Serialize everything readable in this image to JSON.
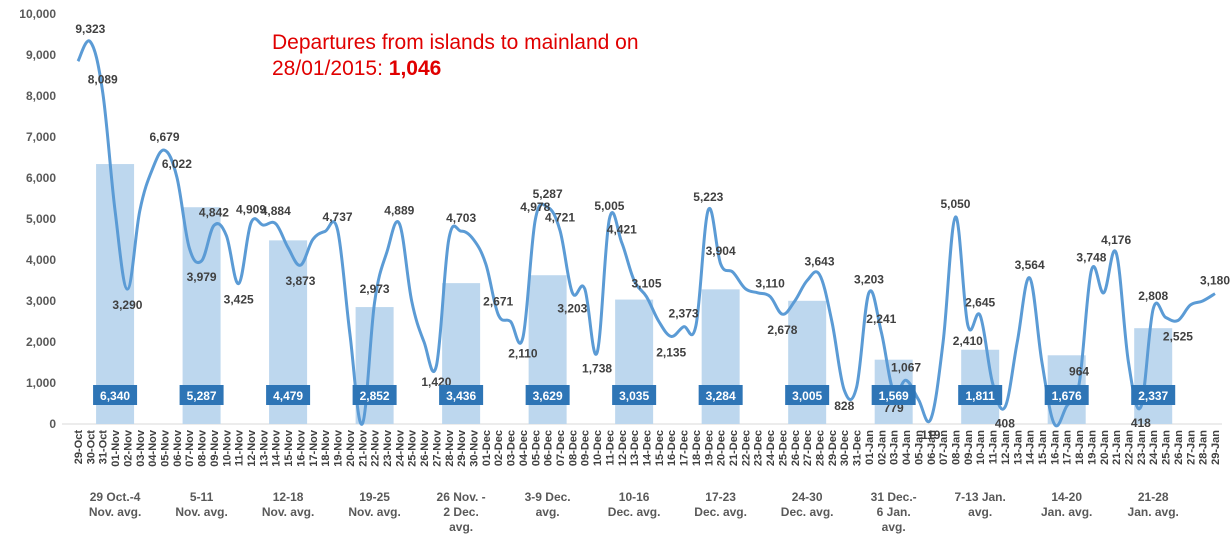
{
  "chart_data": {
    "type": "bar_line",
    "annotation": "Departures from islands to mainland on\n28/01/2015: ",
    "annotation_highlight": "1,046",
    "ylim": [
      0,
      10000
    ],
    "yticks": [
      0,
      {
        "value": 1000,
        "label": "1,000"
      },
      {
        "value": 2000,
        "label": "2,000"
      },
      {
        "value": 3000,
        "label": "3,000"
      },
      {
        "value": 4000,
        "label": "4,000"
      },
      {
        "value": 5000,
        "label": "5,000"
      },
      {
        "value": 6000,
        "label": "6,000"
      },
      {
        "value": 7000,
        "label": "7,000"
      },
      {
        "value": 8000,
        "label": "8,000"
      },
      {
        "value": 9000,
        "label": "9,000"
      },
      {
        "value": 10000,
        "label": "10,000"
      }
    ],
    "categories": [
      "29-Oct",
      "30-Oct",
      "31-Oct",
      "01-Nov",
      "02-Nov",
      "03-Nov",
      "04-Nov",
      "05-Nov",
      "06-Nov",
      "07-Nov",
      "08-Nov",
      "09-Nov",
      "10-Nov",
      "11-Nov",
      "12-Nov",
      "13-Nov",
      "14-Nov",
      "15-Nov",
      "16-Nov",
      "17-Nov",
      "18-Nov",
      "19-Nov",
      "20-Nov",
      "21-Nov",
      "22-Nov",
      "23-Nov",
      "24-Nov",
      "25-Nov",
      "26-Nov",
      "27-Nov",
      "28-Nov",
      "29-Nov",
      "30-Nov",
      "01-Dec",
      "02-Dec",
      "03-Dec",
      "04-Dec",
      "05-Dec",
      "06-Dec",
      "07-Dec",
      "08-Dec",
      "09-Dec",
      "10-Dec",
      "11-Dec",
      "12-Dec",
      "13-Dec",
      "14-Dec",
      "15-Dec",
      "16-Dec",
      "17-Dec",
      "18-Dec",
      "19-Dec",
      "20-Dec",
      "21-Dec",
      "22-Dec",
      "23-Dec",
      "24-Dec",
      "25-Dec",
      "26-Dec",
      "27-Dec",
      "28-Dec",
      "29-Dec",
      "30-Dec",
      "31-Dec",
      "01-Jan",
      "02-Jan",
      "03-Jan",
      "04-Jan",
      "05-Jan",
      "06-Jan",
      "07-Jan",
      "08-Jan",
      "09-Jan",
      "10-Jan",
      "11-Jan",
      "12-Jan",
      "13-Jan",
      "14-Jan",
      "15-Jan",
      "16-Jan",
      "17-Jan",
      "18-Jan",
      "19-Jan",
      "20-Jan",
      "21-Jan",
      "22-Jan",
      "23-Jan",
      "24-Jan",
      "25-Jan",
      "26-Jan",
      "27-Jan",
      "28-Jan",
      "29-Jan"
    ],
    "line": {
      "color": "#5b9bd5",
      "values": [
        8850,
        9323,
        8089,
        5200,
        3290,
        5200,
        6200,
        6679,
        6022,
        4300,
        3979,
        4842,
        4600,
        3425,
        4909,
        4850,
        4884,
        4300,
        3873,
        4500,
        4700,
        4737,
        2200,
        0,
        2973,
        4200,
        4889,
        3000,
        2000,
        1420,
        4500,
        4703,
        4500,
        3900,
        2671,
        2500,
        2110,
        4978,
        5287,
        4721,
        3203,
        3300,
        1738,
        5005,
        4421,
        3500,
        3105,
        2500,
        2135,
        2373,
        2400,
        5223,
        3904,
        3700,
        3300,
        3200,
        3110,
        2678,
        3000,
        3500,
        3643,
        2500,
        828,
        900,
        3203,
        2241,
        779,
        1067,
        600,
        119,
        2000,
        5050,
        2410,
        2645,
        1000,
        408,
        2000,
        3564,
        1500,
        0,
        435,
        964,
        3748,
        3200,
        4176,
        1500,
        418,
        2808,
        2600,
        2525,
        2900,
        3000,
        3180
      ],
      "value_labels": [
        null,
        "9,323",
        "8,089",
        null,
        "3,290",
        null,
        null,
        "6,679",
        "6,022",
        null,
        "3,979",
        "4,842",
        null,
        "3,425",
        "4,909",
        null,
        "4,884",
        null,
        "3,873",
        null,
        null,
        "4,737",
        null,
        null,
        "2,973",
        null,
        "4,889",
        null,
        null,
        "1,420",
        null,
        "4,703",
        null,
        null,
        "2,671",
        null,
        "2,110",
        "4,978",
        "5,287",
        "4,721",
        "3,203",
        null,
        "1,738",
        "5,005",
        "4,421",
        null,
        "3,105",
        null,
        "2,135",
        "2,373",
        null,
        "5,223",
        "3,904",
        null,
        null,
        null,
        "3,110",
        "2,678",
        null,
        null,
        "3,643",
        null,
        "828",
        null,
        "3,203",
        "2,241",
        "779",
        "1,067",
        null,
        "119",
        null,
        "5,050",
        "2,410",
        "2,645",
        null,
        "408",
        null,
        "3,564",
        null,
        null,
        "435",
        "964",
        "3,748",
        null,
        "4,176",
        null,
        "418",
        "2,808",
        null,
        "2,525",
        null,
        null,
        "3,180"
      ]
    },
    "bars": {
      "color": "#bdd7ee",
      "label_color": "#2e75b6",
      "categories": [
        "29 Oct.-4\nNov. avg.",
        "5-11\nNov. avg.",
        "12-18\nNov. avg.",
        "19-25\nNov. avg.",
        "26 Nov. -\n2 Dec.\navg.",
        "3-9 Dec.\navg.",
        "10-16\nDec. avg.",
        "17-23\nDec. avg.",
        "24-30\nDec. avg.",
        "31 Dec.-\n6 Jan.\navg.",
        "7-13 Jan.\navg.",
        "14-20\nJan. avg.",
        "21-28\nJan. avg."
      ],
      "values": [
        6340,
        5287,
        4479,
        2852,
        3436,
        3629,
        3035,
        3284,
        3005,
        1569,
        1811,
        1676,
        2337
      ],
      "value_labels": [
        "6,340",
        "5,287",
        "4,479",
        "2,852",
        "3,436",
        "3,629",
        "3,035",
        "3,284",
        "3,005",
        "1,569",
        "1,811",
        "1,676",
        "2,337"
      ]
    }
  }
}
